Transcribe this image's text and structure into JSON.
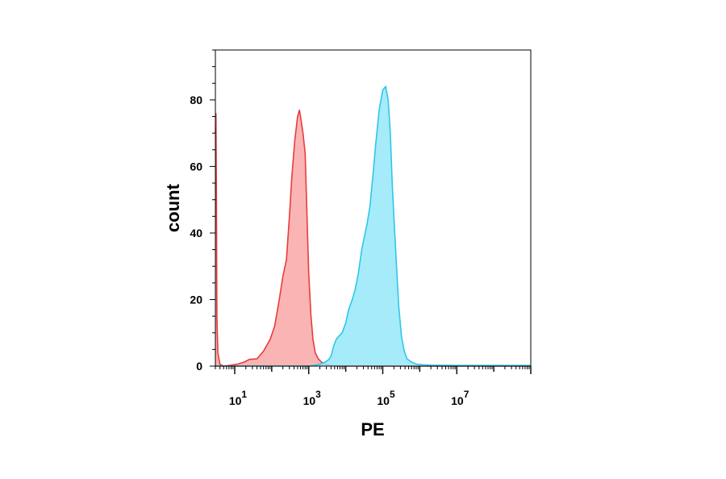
{
  "chart_data": {
    "type": "area",
    "title": "",
    "xlabel": "PE",
    "ylabel": "count",
    "x_scale": "log10",
    "xlim": [
      3,
      1000000000
    ],
    "ylim": [
      0,
      95
    ],
    "grid": false,
    "legend": "none",
    "x_ticks": [
      {
        "value": 10,
        "base": "10",
        "exp": "1"
      },
      {
        "value": 1000,
        "base": "10",
        "exp": "3"
      },
      {
        "value": 100000,
        "base": "10",
        "exp": "5"
      },
      {
        "value": 10000000,
        "base": "10",
        "exp": "7"
      }
    ],
    "y_ticks": [
      0,
      20,
      40,
      60,
      80
    ],
    "series": [
      {
        "color": "#e83c3c",
        "fill": "#f9a7a7",
        "x": [
          3,
          3.1,
          3.2,
          3.3,
          3.5,
          4,
          5,
          8,
          12,
          18,
          25,
          40,
          60,
          90,
          120,
          160,
          200,
          250,
          300,
          350,
          420,
          500,
          560,
          620,
          700,
          800,
          900,
          1000,
          1150,
          1300,
          1500,
          1800,
          2200,
          2800,
          3500,
          4500,
          6000,
          10000,
          100000,
          1000000,
          1000000000
        ],
        "y": [
          70,
          76,
          50,
          15,
          4,
          0.5,
          0,
          0.3,
          0.6,
          1.2,
          2,
          2.2,
          4.5,
          8,
          12,
          20,
          27,
          32,
          45,
          57,
          68,
          75,
          77,
          74,
          70,
          64,
          45,
          28,
          15,
          8,
          4,
          2.2,
          1.2,
          0.6,
          0.3,
          0.1,
          0,
          0,
          0,
          0,
          0
        ]
      },
      {
        "color": "#2fc6ea",
        "fill": "#95e7f9",
        "x": [
          3,
          1000,
          1500,
          2000,
          2800,
          3500,
          4000,
          4700,
          5500,
          6500,
          8000,
          10000,
          12000,
          15000,
          18000,
          22000,
          27000,
          32000,
          38000,
          45000,
          55000,
          65000,
          80000,
          100000,
          120000,
          140000,
          160000,
          180000,
          200000,
          230000,
          270000,
          320000,
          380000,
          450000,
          600000,
          800000,
          1200000,
          2000000,
          10000000,
          1000000000
        ],
        "y": [
          0,
          0,
          0.3,
          0.6,
          1.2,
          2,
          3,
          6,
          8,
          9,
          10,
          13,
          17,
          20,
          23,
          28,
          35,
          39,
          43,
          48,
          58,
          67,
          77,
          83,
          84,
          80,
          70,
          55,
          45,
          32,
          18,
          9,
          4.5,
          2.2,
          1.2,
          0.6,
          0.4,
          0.3,
          0.2,
          0.2
        ]
      }
    ]
  }
}
